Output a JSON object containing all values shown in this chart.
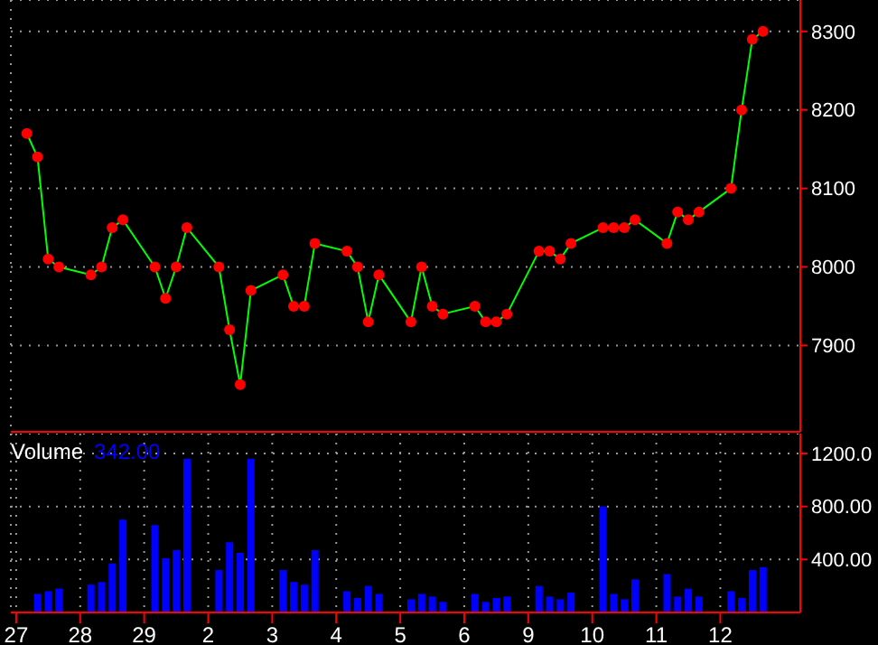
{
  "chart_data": [
    {
      "type": "line",
      "categories": [
        "27",
        null,
        null,
        null,
        null,
        null,
        "28",
        null,
        null,
        null,
        null,
        null,
        "29",
        null,
        null,
        null,
        null,
        null,
        "2",
        null,
        null,
        null,
        null,
        null,
        "3",
        null,
        null,
        null,
        null,
        null,
        "4",
        null,
        null,
        null,
        null,
        null,
        "5",
        null,
        null,
        null,
        null,
        null,
        "6",
        null,
        null,
        null,
        null,
        null,
        "9",
        null,
        null,
        null,
        null,
        null,
        "10",
        null,
        null,
        null,
        null,
        null,
        "11",
        null,
        null,
        null,
        null,
        null,
        "12",
        null,
        null,
        null,
        null,
        null,
        null,
        null
      ],
      "series": [
        {
          "color": "#00ff00",
          "values": [
            null,
            8170,
            8140,
            8010,
            8000,
            null,
            null,
            7990,
            8000,
            8050,
            8060,
            null,
            null,
            8000,
            7960,
            8000,
            8050,
            null,
            null,
            8000,
            7920,
            7850,
            7970,
            null,
            null,
            7990,
            7950,
            7950,
            8030,
            null,
            null,
            8020,
            8000,
            7930,
            7990,
            null,
            null,
            7930,
            8000,
            7950,
            7940,
            null,
            null,
            7950,
            7930,
            7930,
            7940,
            null,
            null,
            8020,
            8020,
            8010,
            8030,
            null,
            null,
            8050,
            8050,
            8050,
            8060,
            null,
            null,
            8030,
            8070,
            8060,
            8070,
            null,
            null,
            8100,
            8200,
            8290,
            8300,
            null,
            null,
            null
          ]
        }
      ],
      "ylim": [
        7790,
        8340
      ],
      "yticks": [
        7900,
        8000,
        8100,
        8200,
        8300
      ],
      "grid": true,
      "marker": "circle",
      "tick_labels": "y"
    },
    {
      "type": "bar",
      "title": "Volume",
      "subtitle": "342.00",
      "categories": [
        "27",
        null,
        null,
        null,
        null,
        null,
        "28",
        null,
        null,
        null,
        null,
        null,
        "29",
        null,
        null,
        null,
        null,
        null,
        "2",
        null,
        null,
        null,
        null,
        null,
        "3",
        null,
        null,
        null,
        null,
        null,
        "4",
        null,
        null,
        null,
        null,
        null,
        "5",
        null,
        null,
        null,
        null,
        null,
        "6",
        null,
        null,
        null,
        null,
        null,
        "9",
        null,
        null,
        null,
        null,
        null,
        "10",
        null,
        null,
        null,
        null,
        null,
        "11",
        null,
        null,
        null,
        null,
        null,
        "12",
        null,
        null,
        null,
        null,
        null,
        null,
        null
      ],
      "series": [
        {
          "color": "#0000ff",
          "values": [
            null,
            null,
            140,
            160,
            180,
            null,
            null,
            210,
            230,
            370,
            700,
            null,
            null,
            660,
            410,
            470,
            1160,
            null,
            null,
            320,
            530,
            450,
            1160,
            null,
            null,
            320,
            230,
            210,
            470,
            null,
            null,
            160,
            110,
            200,
            140,
            null,
            null,
            100,
            140,
            120,
            80,
            null,
            null,
            140,
            80,
            110,
            120,
            null,
            null,
            200,
            120,
            100,
            150,
            null,
            null,
            800,
            140,
            100,
            250,
            null,
            null,
            290,
            120,
            180,
            120,
            null,
            null,
            160,
            110,
            320,
            342,
            null,
            null,
            null
          ]
        }
      ],
      "ylim": [
        0,
        1350
      ],
      "yticks": [
        {
          "value": 400,
          "label": "400.00"
        },
        {
          "value": 800,
          "label": "800.00"
        },
        {
          "value": 1200,
          "label": "1200.0"
        }
      ],
      "grid": true
    }
  ]
}
